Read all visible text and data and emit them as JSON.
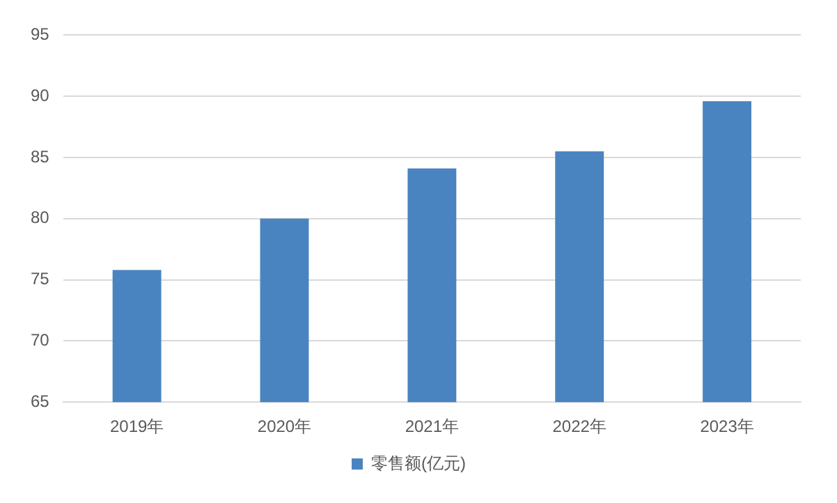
{
  "chart_data": {
    "type": "bar",
    "categories": [
      "2019年",
      "2020年",
      "2021年",
      "2022年",
      "2023年"
    ],
    "series": [
      {
        "name": "零售额(亿元)",
        "color": "#4a84c0",
        "values": [
          75.8,
          80.0,
          84.1,
          85.5,
          89.6
        ]
      }
    ],
    "ylim": [
      65,
      95
    ],
    "yticks": [
      65,
      70,
      75,
      80,
      85,
      90,
      95
    ],
    "grid": "y",
    "legend": "bottom"
  }
}
